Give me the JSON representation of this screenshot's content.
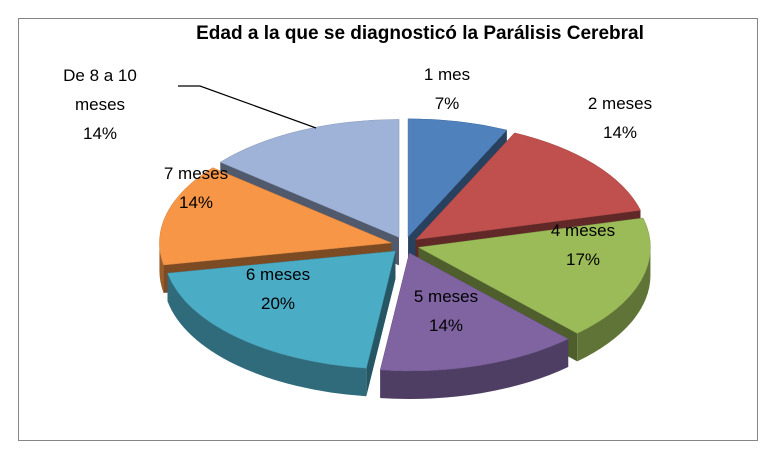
{
  "chart_data": {
    "type": "pie3d",
    "title": "Edad a la que se diagnosticó la Parálisis Cerebral",
    "categories": [
      "1 mes",
      "2 meses",
      "4 meses",
      "5 meses",
      "6 meses",
      "7 meses",
      "De 8 a 10 meses"
    ],
    "values": [
      7,
      14,
      17,
      14,
      20,
      14,
      14
    ],
    "value_labels": [
      "7%",
      "14%",
      "17%",
      "14%",
      "20%",
      "14%",
      "14%"
    ],
    "colors": [
      "#4f81bd",
      "#c0504d",
      "#9bbb59",
      "#8064a2",
      "#4bacc6",
      "#f79646",
      "#9fb3d8"
    ]
  }
}
